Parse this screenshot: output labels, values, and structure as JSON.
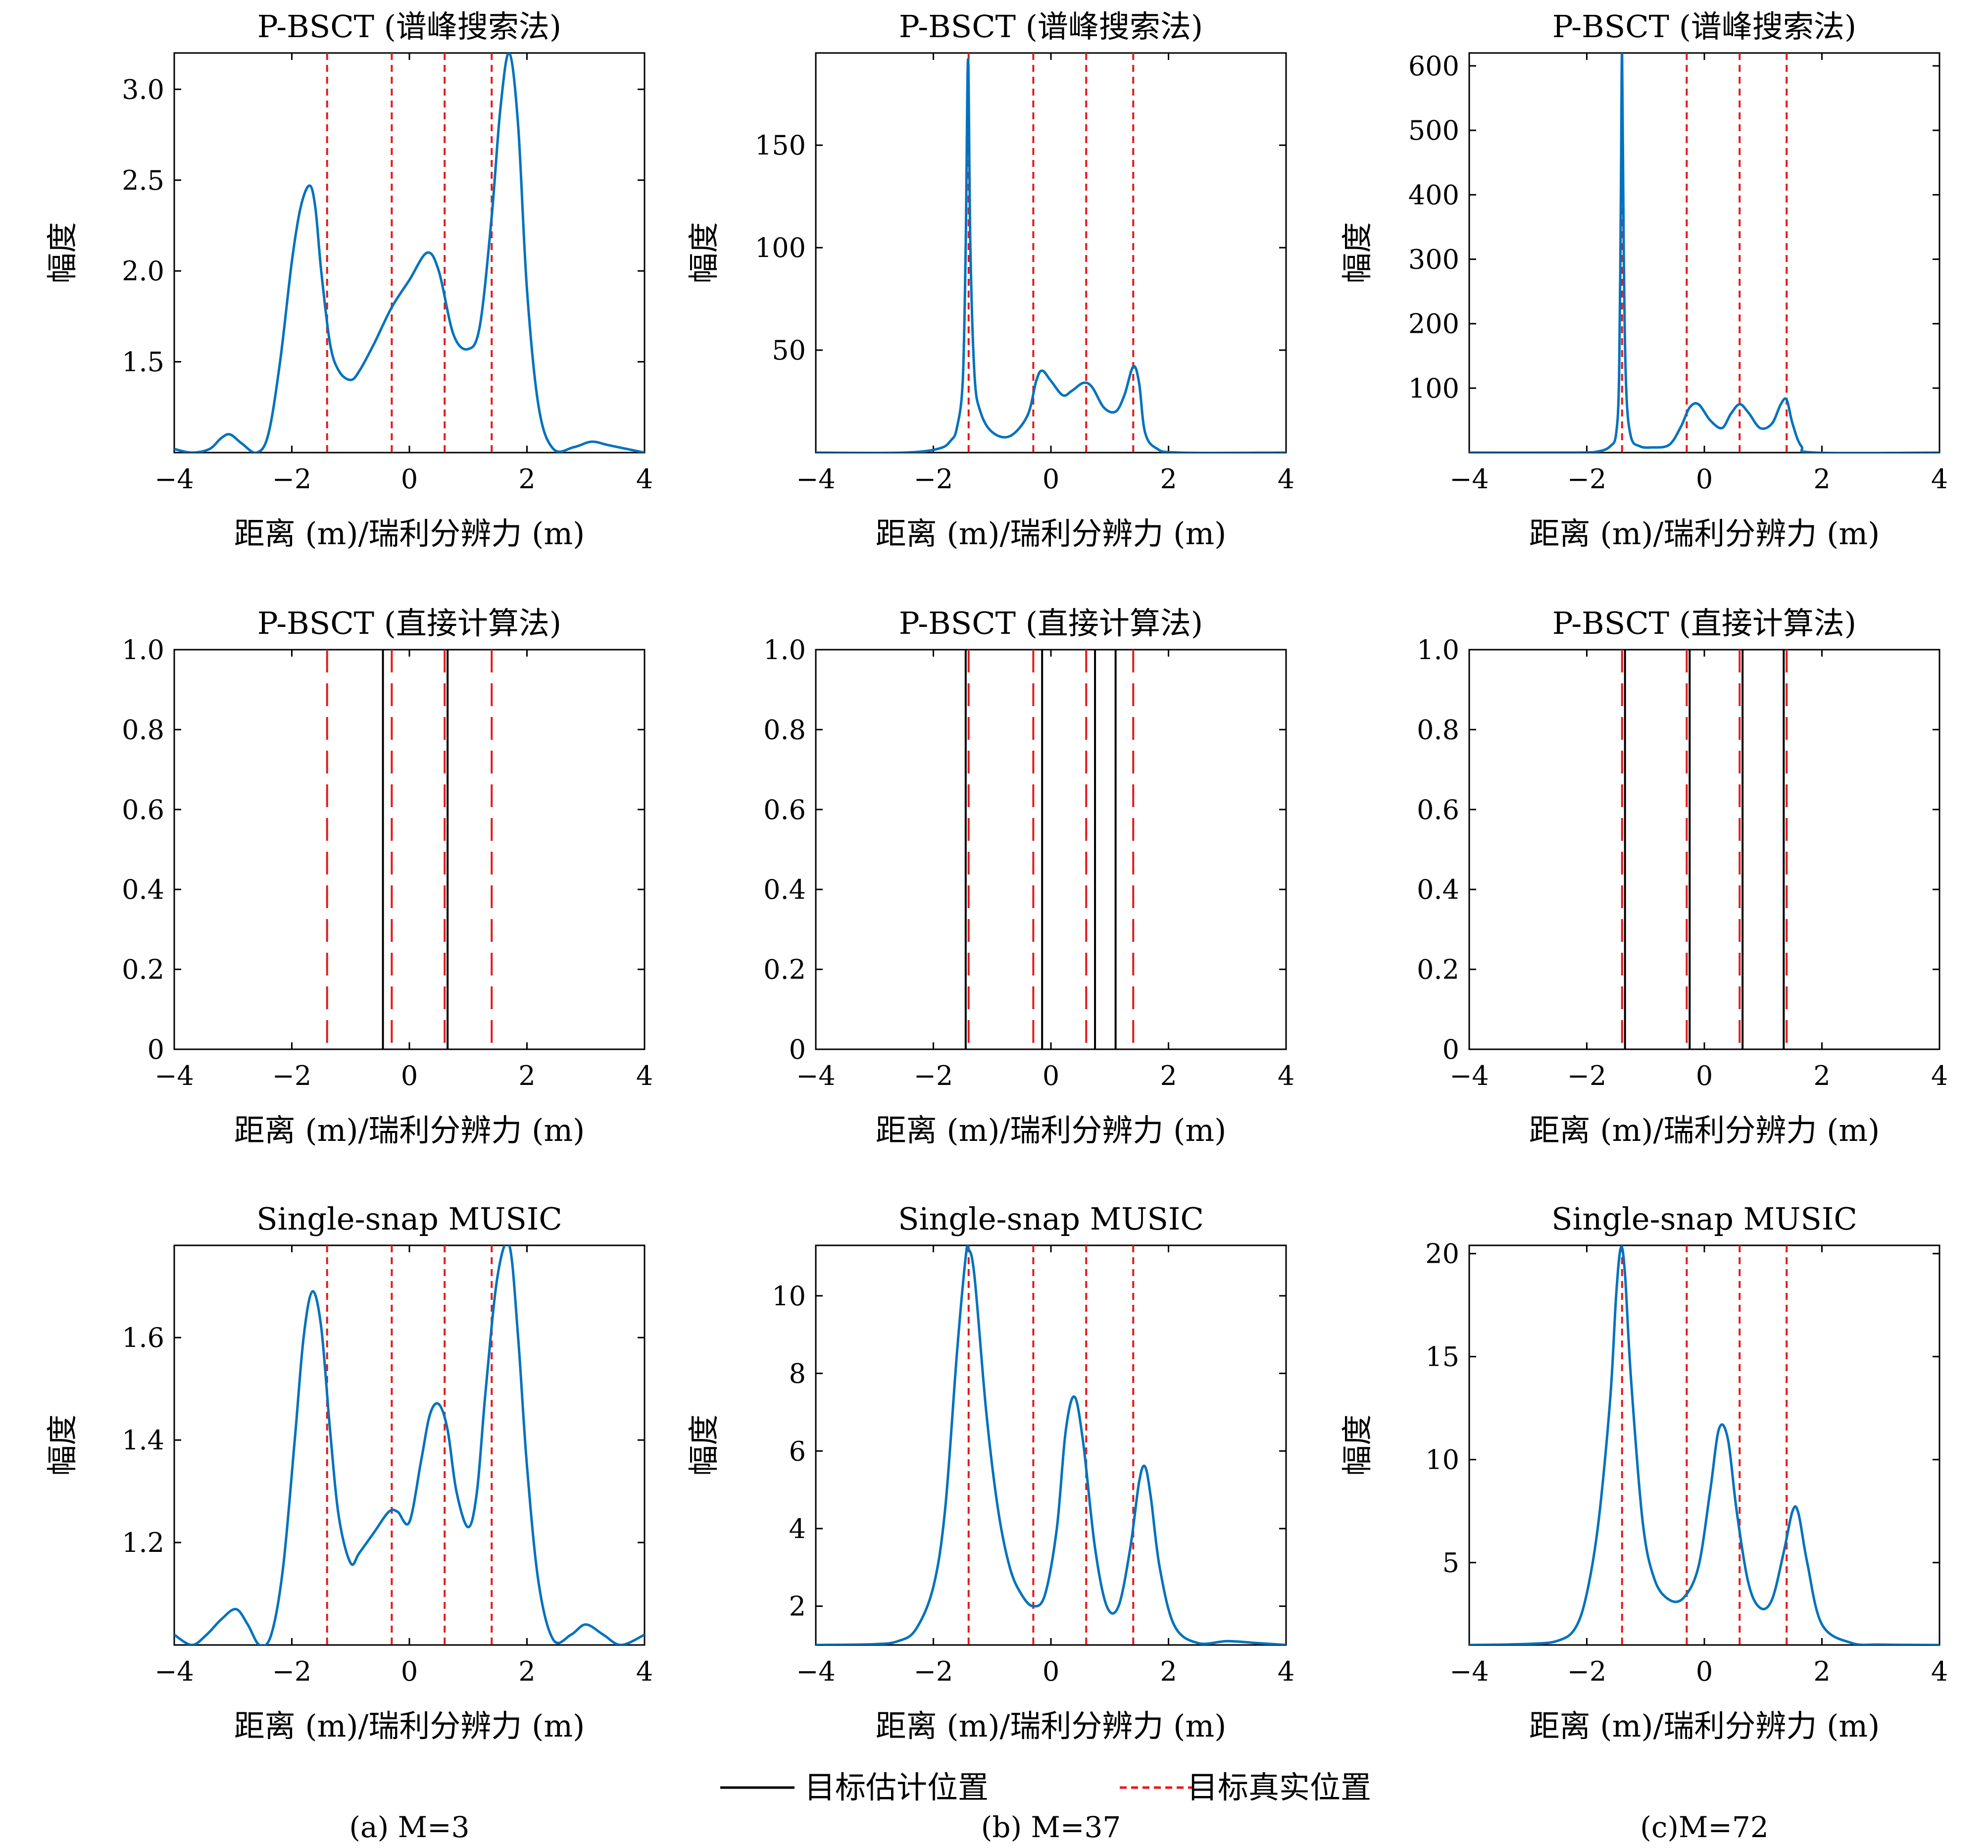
{
  "figure": {
    "colors": {
      "estimate_curve": "#0072BD",
      "true_position": "#e41a1c",
      "estimate_line": "#000000"
    },
    "legend": {
      "estimate_label": "目标估计位置",
      "true_label": "目标真实位置"
    },
    "captions": [
      "(a) M=3",
      "(b) M=37",
      "(c)M=72"
    ]
  },
  "chart_data": [
    {
      "type": "line",
      "row": 0,
      "col": 0,
      "title": "P-BSCT (谱峰搜索法)",
      "xlabel": "距离 (m)/瑞利分辨力 (m)",
      "ylabel": "幅度",
      "xlim": [
        -4,
        4
      ],
      "ylim": [
        1.0,
        3.2
      ],
      "xticks": [
        -4,
        -2,
        0,
        2,
        4
      ],
      "xtick_labels": [
        "−4",
        "−2",
        "0",
        "2",
        "4"
      ],
      "yticks": [
        1.5,
        2.0,
        2.5,
        3.0
      ],
      "ytick_labels": [
        "1.5",
        "2.0",
        "2.5",
        "3.0"
      ],
      "true_positions": [
        -1.4,
        -0.3,
        0.6,
        1.4
      ],
      "series": [
        {
          "x": [
            -4.0,
            -3.7,
            -3.4,
            -3.2,
            -3.05,
            -2.85,
            -2.6,
            -2.4,
            -2.2,
            -2.0,
            -1.85,
            -1.7,
            -1.6,
            -1.5,
            -1.35,
            -1.2,
            -1.0,
            -0.85,
            -0.6,
            -0.3,
            0.0,
            0.3,
            0.5,
            0.75,
            1.0,
            1.2,
            1.4,
            1.55,
            1.7,
            1.85,
            2.0,
            2.2,
            2.45,
            2.8,
            3.1,
            3.4,
            4.0
          ],
          "y": [
            1.02,
            1.0,
            1.02,
            1.08,
            1.1,
            1.05,
            1.0,
            1.1,
            1.5,
            2.05,
            2.35,
            2.47,
            2.35,
            2.0,
            1.6,
            1.45,
            1.4,
            1.45,
            1.6,
            1.8,
            1.95,
            2.1,
            2.0,
            1.65,
            1.57,
            1.7,
            2.3,
            2.9,
            3.2,
            2.8,
            1.9,
            1.25,
            1.02,
            1.03,
            1.06,
            1.04,
            1.0
          ]
        }
      ]
    },
    {
      "type": "line",
      "row": 0,
      "col": 1,
      "title": "P-BSCT (谱峰搜索法)",
      "xlabel": "距离 (m)/瑞利分辨力 (m)",
      "ylabel": "幅度",
      "xlim": [
        -4,
        4
      ],
      "ylim": [
        0,
        195
      ],
      "xticks": [
        -4,
        -2,
        0,
        2,
        4
      ],
      "xtick_labels": [
        "−4",
        "−2",
        "0",
        "2",
        "4"
      ],
      "yticks": [
        50,
        100,
        150
      ],
      "ytick_labels": [
        "50",
        "100",
        "150"
      ],
      "true_positions": [
        -1.4,
        -0.3,
        0.6,
        1.4
      ],
      "series": [
        {
          "x": [
            -4.0,
            -2.5,
            -1.9,
            -1.7,
            -1.6,
            -1.5,
            -1.45,
            -1.41,
            -1.37,
            -1.3,
            -1.2,
            -1.0,
            -0.7,
            -0.4,
            -0.25,
            -0.15,
            0.0,
            0.2,
            0.35,
            0.55,
            0.7,
            0.9,
            1.1,
            1.25,
            1.4,
            1.5,
            1.6,
            1.8,
            2.2,
            4.0
          ],
          "y": [
            0,
            0,
            2,
            6,
            12,
            35,
            100,
            192,
            100,
            38,
            20,
            10,
            8,
            18,
            35,
            40,
            35,
            28,
            30,
            34,
            32,
            22,
            20,
            28,
            42,
            34,
            10,
            2,
            0,
            0
          ]
        }
      ]
    },
    {
      "type": "line",
      "row": 0,
      "col": 2,
      "title": "P-BSCT (谱峰搜索法)",
      "xlabel": "距离 (m)/瑞利分辨力 (m)",
      "ylabel": "幅度",
      "xlim": [
        -4,
        4
      ],
      "ylim": [
        0,
        620
      ],
      "xticks": [
        -4,
        -2,
        0,
        2,
        4
      ],
      "xtick_labels": [
        "−4",
        "−2",
        "0",
        "2",
        "4"
      ],
      "yticks": [
        100,
        200,
        300,
        400,
        500,
        600
      ],
      "ytick_labels": [
        "100",
        "200",
        "300",
        "400",
        "500",
        "600"
      ],
      "true_positions": [
        -1.4,
        -0.3,
        0.6,
        1.4
      ],
      "series": [
        {
          "x": [
            -4.0,
            -2.2,
            -1.8,
            -1.6,
            -1.5,
            -1.45,
            -1.42,
            -1.4,
            -1.37,
            -1.33,
            -1.25,
            -1.1,
            -0.9,
            -0.6,
            -0.4,
            -0.25,
            -0.1,
            0.1,
            0.3,
            0.45,
            0.6,
            0.75,
            0.95,
            1.15,
            1.3,
            1.4,
            1.5,
            1.65,
            1.9,
            4.0
          ],
          "y": [
            0,
            0,
            2,
            10,
            30,
            120,
            400,
            620,
            300,
            100,
            25,
            10,
            8,
            12,
            40,
            70,
            75,
            50,
            38,
            60,
            75,
            62,
            38,
            45,
            75,
            82,
            45,
            10,
            0,
            0
          ]
        }
      ]
    },
    {
      "type": "stem",
      "row": 1,
      "col": 0,
      "title": "P-BSCT (直接计算法)",
      "xlabel": "距离 (m)/瑞利分辨力 (m)",
      "xlim": [
        -4,
        4
      ],
      "ylim": [
        0,
        1.0
      ],
      "xticks": [
        -4,
        -2,
        0,
        2,
        4
      ],
      "xtick_labels": [
        "−4",
        "−2",
        "0",
        "2",
        "4"
      ],
      "yticks": [
        0,
        0.2,
        0.4,
        0.6,
        0.8,
        1.0
      ],
      "ytick_labels": [
        "0",
        "0.2",
        "0.4",
        "0.6",
        "0.8",
        "1.0"
      ],
      "true_positions": [
        -1.4,
        -0.3,
        0.6,
        1.4
      ],
      "estimates": [
        -0.45,
        0.65
      ]
    },
    {
      "type": "stem",
      "row": 1,
      "col": 1,
      "title": "P-BSCT (直接计算法)",
      "xlabel": "距离 (m)/瑞利分辨力 (m)",
      "xlim": [
        -4,
        4
      ],
      "ylim": [
        0,
        1.0
      ],
      "xticks": [
        -4,
        -2,
        0,
        2,
        4
      ],
      "xtick_labels": [
        "−4",
        "−2",
        "0",
        "2",
        "4"
      ],
      "yticks": [
        0,
        0.2,
        0.4,
        0.6,
        0.8,
        1.0
      ],
      "ytick_labels": [
        "0",
        "0.2",
        "0.4",
        "0.6",
        "0.8",
        "1.0"
      ],
      "true_positions": [
        -1.4,
        -0.3,
        0.6,
        1.4
      ],
      "estimates": [
        -1.45,
        -0.15,
        0.75,
        1.1
      ]
    },
    {
      "type": "stem",
      "row": 1,
      "col": 2,
      "title": "P-BSCT (直接计算法)",
      "xlabel": "距离 (m)/瑞利分辨力 (m)",
      "xlim": [
        -4,
        4
      ],
      "ylim": [
        0,
        1.0
      ],
      "xticks": [
        -4,
        -2,
        0,
        2,
        4
      ],
      "xtick_labels": [
        "−4",
        "−2",
        "0",
        "2",
        "4"
      ],
      "yticks": [
        0,
        0.2,
        0.4,
        0.6,
        0.8,
        1.0
      ],
      "ytick_labels": [
        "0",
        "0.2",
        "0.4",
        "0.6",
        "0.8",
        "1.0"
      ],
      "true_positions": [
        -1.4,
        -0.3,
        0.6,
        1.4
      ],
      "estimates": [
        -1.35,
        -0.25,
        0.65,
        1.35
      ]
    },
    {
      "type": "line",
      "row": 2,
      "col": 0,
      "title": "Single-snap MUSIC",
      "xlabel": "距离 (m)/瑞利分辨力 (m)",
      "ylabel": "幅度",
      "xlim": [
        -4,
        4
      ],
      "ylim": [
        1.0,
        1.78
      ],
      "xticks": [
        -4,
        -2,
        0,
        2,
        4
      ],
      "xtick_labels": [
        "−4",
        "−2",
        "0",
        "2",
        "4"
      ],
      "yticks": [
        1.2,
        1.4,
        1.6
      ],
      "ytick_labels": [
        "1.2",
        "1.4",
        "1.6"
      ],
      "true_positions": [
        -1.4,
        -0.3,
        0.6,
        1.4
      ],
      "series": [
        {
          "x": [
            -4.0,
            -3.7,
            -3.45,
            -3.2,
            -2.95,
            -2.75,
            -2.55,
            -2.35,
            -2.15,
            -1.95,
            -1.8,
            -1.65,
            -1.5,
            -1.35,
            -1.2,
            -1.0,
            -0.85,
            -0.6,
            -0.35,
            -0.2,
            0.0,
            0.2,
            0.35,
            0.5,
            0.65,
            0.8,
            1.0,
            1.15,
            1.3,
            1.5,
            1.7,
            1.85,
            2.0,
            2.2,
            2.45,
            2.75,
            3.0,
            3.3,
            3.6,
            4.0
          ],
          "y": [
            1.02,
            1.0,
            1.02,
            1.05,
            1.07,
            1.04,
            1.0,
            1.02,
            1.15,
            1.4,
            1.6,
            1.69,
            1.62,
            1.42,
            1.25,
            1.16,
            1.18,
            1.22,
            1.26,
            1.26,
            1.24,
            1.36,
            1.45,
            1.47,
            1.42,
            1.3,
            1.23,
            1.3,
            1.5,
            1.72,
            1.78,
            1.6,
            1.35,
            1.12,
            1.01,
            1.02,
            1.04,
            1.02,
            1.0,
            1.02
          ]
        }
      ]
    },
    {
      "type": "line",
      "row": 2,
      "col": 1,
      "title": "Single-snap MUSIC",
      "xlabel": "距离 (m)/瑞利分辨力 (m)",
      "ylabel": "幅度",
      "xlim": [
        -4,
        4
      ],
      "ylim": [
        1.0,
        11.3
      ],
      "xticks": [
        -4,
        -2,
        0,
        2,
        4
      ],
      "xtick_labels": [
        "−4",
        "−2",
        "0",
        "2",
        "4"
      ],
      "yticks": [
        2,
        4,
        6,
        8,
        10
      ],
      "ytick_labels": [
        "2",
        "4",
        "6",
        "8",
        "10"
      ],
      "true_positions": [
        -1.4,
        -0.3,
        0.6,
        1.4
      ],
      "series": [
        {
          "x": [
            -4.0,
            -3.0,
            -2.6,
            -2.3,
            -2.0,
            -1.8,
            -1.6,
            -1.45,
            -1.4,
            -1.3,
            -1.1,
            -0.9,
            -0.7,
            -0.5,
            -0.3,
            -0.1,
            0.1,
            0.25,
            0.4,
            0.55,
            0.75,
            0.95,
            1.15,
            1.35,
            1.5,
            1.6,
            1.7,
            1.85,
            2.1,
            2.5,
            3.0,
            3.5,
            4.0
          ],
          "y": [
            1.0,
            1.02,
            1.1,
            1.4,
            2.5,
            4.5,
            8.5,
            11.0,
            11.2,
            10.5,
            7.0,
            4.5,
            3.0,
            2.3,
            2.0,
            2.3,
            4.0,
            6.5,
            7.4,
            6.2,
            3.5,
            2.0,
            2.0,
            3.5,
            5.2,
            5.6,
            4.8,
            3.0,
            1.5,
            1.05,
            1.1,
            1.05,
            1.0
          ]
        }
      ]
    },
    {
      "type": "line",
      "row": 2,
      "col": 2,
      "title": "Single-snap MUSIC",
      "xlabel": "距离 (m)/瑞利分辨力 (m)",
      "ylabel": "幅度",
      "xlim": [
        -4,
        4
      ],
      "ylim": [
        1.0,
        20.4
      ],
      "xticks": [
        -4,
        -2,
        0,
        2,
        4
      ],
      "xtick_labels": [
        "−4",
        "−2",
        "0",
        "2",
        "4"
      ],
      "yticks": [
        5,
        10,
        15,
        20
      ],
      "ytick_labels": [
        "5",
        "10",
        "15",
        "20"
      ],
      "true_positions": [
        -1.4,
        -0.3,
        0.6,
        1.4
      ],
      "series": [
        {
          "x": [
            -4.0,
            -3.0,
            -2.5,
            -2.2,
            -2.0,
            -1.8,
            -1.6,
            -1.5,
            -1.42,
            -1.35,
            -1.25,
            -1.05,
            -0.85,
            -0.6,
            -0.35,
            -0.1,
            0.1,
            0.25,
            0.4,
            0.55,
            0.75,
            0.95,
            1.15,
            1.35,
            1.5,
            1.6,
            1.75,
            2.0,
            2.5,
            3.0,
            4.0
          ],
          "y": [
            1.0,
            1.05,
            1.2,
            1.8,
            3.5,
            7.0,
            13.0,
            18.0,
            20.3,
            19.0,
            14.0,
            7.0,
            4.2,
            3.2,
            3.3,
            4.8,
            8.5,
            11.5,
            11.0,
            7.5,
            4.0,
            2.8,
            3.2,
            5.5,
            7.5,
            7.4,
            5.0,
            2.0,
            1.1,
            1.02,
            1.0
          ]
        }
      ]
    }
  ]
}
